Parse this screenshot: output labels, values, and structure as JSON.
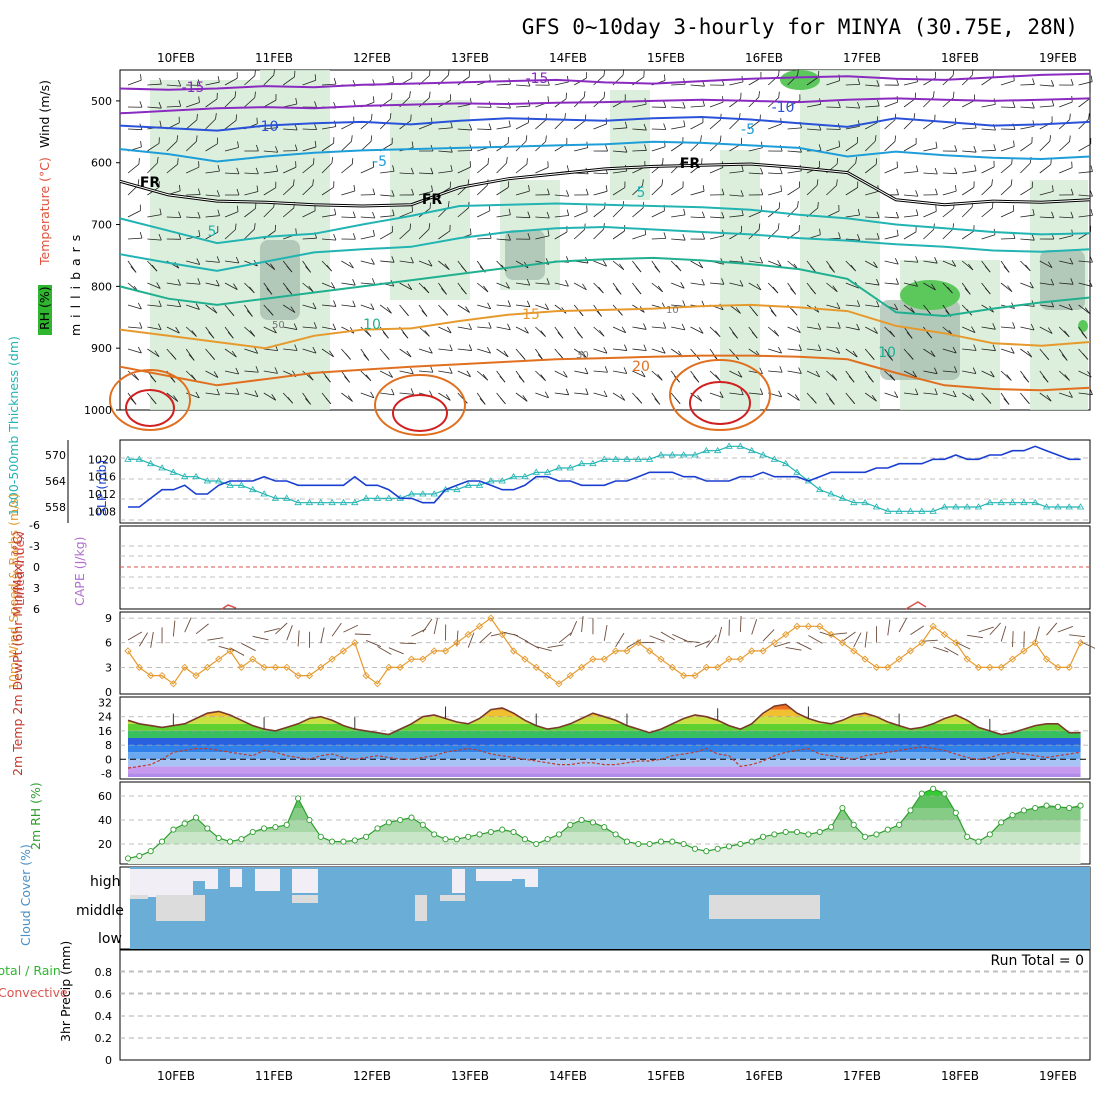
{
  "title": "GFS 0~10day 3-hourly for MINYA (30.75E, 28N)",
  "dates": [
    "10FEB",
    "11FEB",
    "12FEB",
    "13FEB",
    "14FEB",
    "15FEB",
    "16FEB",
    "17FEB",
    "18FEB",
    "19FEB"
  ],
  "colors": {
    "rh_fill": "#d6ecd6",
    "rh_dark": "#9fb8a8",
    "rh_bright": "#5cc85c",
    "wind_barb": "#222222",
    "slp": "#1a3fd0",
    "thickness": "#22b3b3",
    "wind_speed": "#e69a2e",
    "cloud_bg": "#6aaed8",
    "cloud_cover": "#dcdcdc",
    "cloud_high": "#f2eef6",
    "rh2m": "#2f9e2f",
    "dewpoint": "#c0392b",
    "lifted_index": "#d9534f",
    "cape": "#b070d0"
  },
  "chart_data": [
    {
      "type": "contour",
      "name": "upper-air cross section",
      "ylabel": "millibars",
      "ylabel_parts": [
        "RH (%)",
        "Temperature (°C)",
        "Wind (m/s)"
      ],
      "yticks": [
        500,
        600,
        700,
        800,
        900,
        1000
      ],
      "ylim": [
        1000,
        450
      ],
      "temperature_isotherms": [
        {
          "label": "-15",
          "color": "#8a2bc0",
          "p": [
            480,
            482,
            480,
            476,
            478,
            474,
            472,
            470,
            468,
            466,
            470,
            472,
            468,
            464,
            462,
            460,
            464,
            466,
            462,
            458,
            456
          ]
        },
        {
          "label": "-15",
          "color": "#8a2bc0",
          "p": [
            520,
            516,
            512,
            510,
            512,
            508,
            506,
            504,
            505,
            503,
            502,
            500,
            498,
            500,
            502,
            498,
            496,
            498,
            500,
            498,
            496
          ]
        },
        {
          "label": "-10",
          "color": "#2a52d8",
          "p": [
            540,
            544,
            548,
            540,
            536,
            534,
            538,
            532,
            528,
            530,
            532,
            528,
            526,
            530,
            536,
            542,
            528,
            534,
            540,
            538,
            534
          ]
        },
        {
          "label": "-5",
          "color": "#1e9ed8",
          "p": [
            578,
            586,
            598,
            590,
            584,
            580,
            578,
            576,
            574,
            572,
            570,
            566,
            568,
            572,
            576,
            590,
            582,
            588,
            592,
            594,
            590
          ]
        },
        {
          "label": "FR",
          "color": "#000000",
          "p": [
            630,
            652,
            662,
            664,
            668,
            670,
            668,
            640,
            626,
            618,
            610,
            606,
            604,
            602,
            608,
            616,
            660,
            668,
            662,
            664,
            660
          ]
        },
        {
          "label": "5",
          "color": "#22b3b3",
          "p": [
            690,
            710,
            730,
            720,
            715,
            700,
            686,
            670,
            668,
            666,
            668,
            670,
            672,
            676,
            684,
            690,
            700,
            706,
            712,
            716,
            714
          ]
        },
        {
          "label": "5",
          "color": "#22b3b3",
          "p": [
            748,
            762,
            775,
            760,
            745,
            740,
            736,
            722,
            712,
            706,
            704,
            708,
            712,
            716,
            722,
            726,
            732,
            736,
            742,
            744,
            740
          ]
        },
        {
          "label": "10",
          "color": "#20b090",
          "p": [
            800,
            820,
            830,
            820,
            810,
            800,
            790,
            780,
            770,
            760,
            756,
            754,
            758,
            764,
            772,
            788,
            842,
            848,
            836,
            826,
            818
          ]
        },
        {
          "label": "15",
          "color": "#e69a2e",
          "p": [
            870,
            880,
            890,
            900,
            880,
            870,
            868,
            856,
            846,
            840,
            838,
            836,
            832,
            830,
            834,
            840,
            864,
            876,
            892,
            896,
            890
          ]
        },
        {
          "label": "20",
          "color": "#e07020",
          "p": [
            930,
            945,
            960,
            950,
            940,
            935,
            930,
            926,
            922,
            918,
            916,
            914,
            912,
            912,
            914,
            918,
            940,
            960,
            966,
            968,
            964
          ]
        }
      ],
      "isotherm_labels": [
        "-15",
        "-15",
        "-10",
        "-10",
        "-5",
        "-5",
        "FR",
        "FR",
        "FR",
        "5",
        "5",
        "10",
        "10",
        "15",
        "20"
      ],
      "rh_labels": [
        "50",
        "10",
        "30"
      ]
    },
    {
      "type": "line",
      "name": "sea level pressure and thickness",
      "y_left_label": "1000-500mb Thickness (dm)",
      "y_right_label": "SLP (mb)",
      "left_ticks": [
        "570",
        "564",
        "558"
      ],
      "right_ticks": [
        "1020",
        "1016",
        "1012",
        "1008"
      ],
      "slp_range": [
        1006,
        1024
      ],
      "slp": [
        1009,
        1009,
        1011,
        1013,
        1013,
        1014,
        1012,
        1012,
        1014,
        1015,
        1015,
        1015,
        1016,
        1015,
        1015,
        1014,
        1014,
        1014,
        1014,
        1014,
        1016,
        1014,
        1014,
        1013,
        1011,
        1011,
        1010,
        1010,
        1013,
        1014,
        1015,
        1015,
        1014,
        1013,
        1013,
        1014,
        1016,
        1016,
        1015,
        1015,
        1014,
        1014,
        1014,
        1015,
        1015,
        1016,
        1017,
        1017,
        1017,
        1016,
        1016,
        1015,
        1015,
        1015,
        1016,
        1016,
        1017,
        1016,
        1016,
        1016,
        1015,
        1016,
        1017,
        1017,
        1017,
        1017,
        1018,
        1018,
        1019,
        1019,
        1019,
        1020,
        1020,
        1021,
        1020,
        1020,
        1021,
        1021,
        1022,
        1022,
        1023,
        1022,
        1021,
        1020,
        1020
      ],
      "thickness_range": [
        555,
        573
      ],
      "thickness": [
        569,
        569,
        568,
        567,
        566,
        565,
        565,
        564,
        564,
        563,
        563,
        562,
        561,
        560,
        560,
        559,
        559,
        559,
        559,
        559,
        559,
        560,
        560,
        560,
        560,
        561,
        561,
        561,
        562,
        562,
        563,
        563,
        564,
        564,
        565,
        565,
        566,
        566,
        567,
        567,
        568,
        568,
        569,
        569,
        569,
        569,
        569,
        570,
        570,
        570,
        570,
        571,
        571,
        572,
        572,
        571,
        570,
        569,
        568,
        566,
        564,
        562,
        561,
        560,
        559,
        559,
        558,
        557,
        557,
        557,
        557,
        557,
        558,
        558,
        558,
        558,
        559,
        559,
        559,
        559,
        559,
        558,
        558,
        558,
        558
      ]
    },
    {
      "type": "line",
      "name": "stability",
      "y_label_li": "Lifted Index",
      "y_label_cape": "CAPE (J/kg)",
      "yticks": [
        "-6",
        "-3",
        "0",
        "3",
        "6"
      ],
      "ylim": [
        -6,
        6
      ],
      "lifted_index_zero": 0
    },
    {
      "type": "line",
      "name": "10m wind",
      "y_label": "10m Wind Speed & Barbs (m/s)",
      "yticks": [
        "9",
        "6",
        "3",
        "0"
      ],
      "ylim": [
        0,
        9.5
      ],
      "speed": [
        5,
        3,
        2,
        2,
        1,
        3,
        2,
        3,
        4,
        5,
        3,
        4,
        3,
        3,
        3,
        2,
        2,
        3,
        4,
        5,
        6,
        2,
        1,
        3,
        3,
        4,
        4,
        5,
        5,
        6,
        7,
        8,
        9,
        7,
        5,
        4,
        3,
        2,
        1,
        2,
        3,
        4,
        4,
        5,
        5,
        6,
        5,
        4,
        3,
        2,
        2,
        3,
        3,
        4,
        4,
        5,
        5,
        6,
        7,
        8,
        8,
        8,
        7,
        6,
        5,
        4,
        3,
        3,
        4,
        5,
        6,
        8,
        7,
        6,
        4,
        3,
        3,
        3,
        4,
        5,
        6,
        4,
        3,
        3,
        6
      ]
    },
    {
      "type": "line",
      "name": "2m temperature and dewpoint",
      "y_label": "2m Temp 2m DewPt (6hr Min/Max) (°C)",
      "yticks": [
        "32",
        "24",
        "16",
        "8",
        "0",
        "-8"
      ],
      "ylim": [
        -10,
        34
      ],
      "temp": [
        22,
        20,
        19,
        18,
        19,
        20,
        23,
        26,
        27,
        25,
        22,
        19,
        17,
        16,
        18,
        20,
        23,
        24,
        22,
        19,
        17,
        16,
        15,
        14,
        17,
        20,
        24,
        25,
        23,
        21,
        20,
        23,
        28,
        29,
        26,
        22,
        19,
        17,
        18,
        20,
        23,
        26,
        24,
        22,
        19,
        17,
        15,
        17,
        20,
        23,
        25,
        24,
        22,
        19,
        17,
        20,
        26,
        30,
        31,
        26,
        23,
        21,
        20,
        22,
        25,
        26,
        24,
        21,
        19,
        17,
        18,
        20,
        23,
        25,
        22,
        18,
        16,
        14,
        15,
        17,
        19,
        20,
        20,
        15,
        15
      ],
      "dewpoint": [
        -5,
        -4,
        -3,
        0,
        4,
        5,
        6,
        6,
        5,
        4,
        3,
        2,
        5,
        4,
        2,
        1,
        0,
        2,
        3,
        1,
        0,
        1,
        2,
        1,
        0,
        0,
        1,
        2,
        4,
        5,
        6,
        5,
        3,
        2,
        1,
        0,
        -1,
        -2,
        -3,
        -3,
        -2,
        -2,
        -3,
        -3,
        -2,
        -1,
        -1,
        0,
        2,
        3,
        4,
        6,
        3,
        2,
        -4,
        -3,
        -1,
        2,
        4,
        5,
        6,
        3,
        2,
        1,
        0,
        2,
        3,
        4,
        5,
        6,
        7,
        6,
        5,
        3,
        1,
        0,
        1,
        3,
        4,
        3,
        2,
        1,
        2,
        3,
        4
      ]
    },
    {
      "type": "area",
      "name": "2m relative humidity",
      "y_label": "2m RH (%)",
      "yticks": [
        "60",
        "40",
        "20"
      ],
      "ylim": [
        5,
        70
      ],
      "rh": [
        8,
        10,
        14,
        22,
        32,
        37,
        42,
        33,
        25,
        22,
        24,
        30,
        33,
        34,
        36,
        58,
        40,
        26,
        22,
        22,
        23,
        26,
        33,
        38,
        40,
        42,
        36,
        28,
        24,
        24,
        26,
        28,
        30,
        32,
        30,
        24,
        20,
        24,
        28,
        36,
        40,
        38,
        34,
        28,
        22,
        20,
        20,
        22,
        22,
        20,
        16,
        14,
        16,
        18,
        20,
        22,
        26,
        28,
        30,
        30,
        28,
        30,
        34,
        50,
        36,
        26,
        28,
        32,
        36,
        48,
        62,
        66,
        62,
        46,
        26,
        22,
        28,
        38,
        44,
        48,
        50,
        52,
        51,
        50,
        52
      ],
      "bands": [
        20,
        30,
        40,
        50,
        60,
        70
      ]
    },
    {
      "type": "heatmap",
      "name": "cloud cover",
      "y_label": "Cloud Cover (%)",
      "levels": [
        "high",
        "middle",
        "low"
      ]
    },
    {
      "type": "bar",
      "name": "3hr precipitation",
      "y_label": "3hr Precip (mm)",
      "legend_total": "Total / Rain",
      "legend_convective": "Convective",
      "yticks": [
        "0.8",
        "0.6",
        "0.4",
        "0.2",
        "0"
      ],
      "ylim": [
        0,
        1
      ],
      "run_total": "Run Total = 0",
      "values": []
    }
  ]
}
